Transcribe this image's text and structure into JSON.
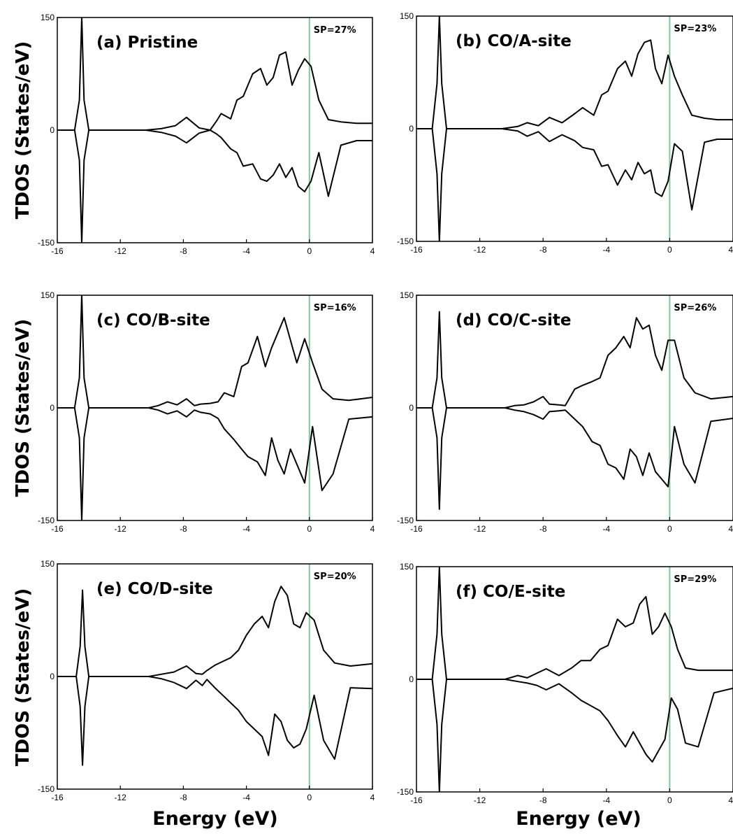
{
  "figure": {
    "ylabel": "TDOS (States/eV)",
    "xlabel": "Energy (eV)"
  },
  "colors": {
    "curve": "#000000",
    "fermi_line": "#7fc89a",
    "frame": "#000000"
  },
  "chart_data": [
    {
      "type": "line",
      "title": "(a) Pristine",
      "annotation": "SP=27%",
      "xlim": [
        -16,
        4
      ],
      "ylim": [
        -150,
        150
      ],
      "xticks": [
        -16,
        -12,
        -8,
        -4,
        0,
        4
      ],
      "yticks": [
        -150,
        0,
        150
      ],
      "fermi_level": 0,
      "series": [
        {
          "x": [
            -16,
            -14.9,
            -14.6,
            -14.45,
            -14.3,
            -14.0,
            -10.4,
            -9.4,
            -8.5,
            -7.8,
            -7.0,
            -6.3,
            -5.9,
            -5.6,
            -5.0,
            -4.6,
            -4.2,
            -3.6,
            -3.1,
            -2.7,
            -2.3,
            -1.9,
            -1.5,
            -1.1,
            -0.7,
            -0.3,
            0.1,
            0.6,
            1.2,
            2.0,
            3.0,
            4.0
          ],
          "values": [
            0,
            0,
            40,
            150,
            40,
            0,
            0,
            2,
            6,
            17,
            3,
            0,
            12,
            22,
            15,
            40,
            45,
            75,
            82,
            60,
            70,
            100,
            104,
            60,
            80,
            95,
            85,
            40,
            14,
            11,
            9,
            9
          ]
        },
        {
          "x": [
            -16,
            -14.9,
            -14.6,
            -14.45,
            -14.3,
            -14.0,
            -10.4,
            -9.4,
            -8.5,
            -7.8,
            -7.0,
            -6.3,
            -5.9,
            -5.6,
            -5.0,
            -4.6,
            -4.2,
            -3.6,
            -3.1,
            -2.7,
            -2.3,
            -1.9,
            -1.5,
            -1.1,
            -0.7,
            -0.3,
            0.1,
            0.6,
            1.2,
            2.0,
            3.0,
            4.0
          ],
          "values": [
            0,
            0,
            -40,
            -150,
            -40,
            0,
            0,
            -3,
            -8,
            -17,
            -4,
            0,
            -5,
            -10,
            -25,
            -30,
            -48,
            -45,
            -65,
            -68,
            -60,
            -45,
            -63,
            -50,
            -75,
            -82,
            -68,
            -30,
            -88,
            -20,
            -14,
            -14
          ]
        }
      ]
    },
    {
      "type": "line",
      "title": "(b) CO/A-site",
      "annotation": "SP=23%",
      "xlim": [
        -16,
        4
      ],
      "ylim": [
        -150,
        150
      ],
      "xticks": [
        -16,
        -12,
        -8,
        -4,
        0,
        4
      ],
      "yticks": [
        -150,
        0,
        150
      ],
      "fermi_level": 0,
      "series": [
        {
          "x": [
            -16,
            -15.0,
            -14.7,
            -14.55,
            -14.4,
            -14.1,
            -10.6,
            -9.6,
            -9.0,
            -8.3,
            -7.6,
            -6.8,
            -6.0,
            -5.5,
            -4.8,
            -4.3,
            -3.9,
            -3.3,
            -2.8,
            -2.4,
            -2.0,
            -1.6,
            -1.2,
            -0.9,
            -0.5,
            -0.1,
            0.3,
            0.8,
            1.4,
            2.2,
            3.0,
            4.0
          ],
          "values": [
            0,
            0,
            60,
            150,
            60,
            0,
            0,
            3,
            8,
            4,
            15,
            8,
            20,
            28,
            18,
            45,
            50,
            80,
            90,
            70,
            100,
            115,
            118,
            80,
            60,
            98,
            70,
            45,
            18,
            14,
            12,
            12
          ]
        },
        {
          "x": [
            -16,
            -15.0,
            -14.7,
            -14.55,
            -14.4,
            -14.1,
            -10.6,
            -9.6,
            -9.0,
            -8.3,
            -7.6,
            -6.8,
            -6.0,
            -5.5,
            -4.8,
            -4.3,
            -3.9,
            -3.3,
            -2.8,
            -2.4,
            -2.0,
            -1.6,
            -1.2,
            -0.9,
            -0.5,
            -0.1,
            0.3,
            0.8,
            1.4,
            2.2,
            3.0,
            4.0
          ],
          "values": [
            0,
            0,
            -60,
            -150,
            -60,
            0,
            0,
            -3,
            -10,
            -4,
            -17,
            -8,
            -16,
            -25,
            -28,
            -50,
            -48,
            -75,
            -55,
            -68,
            -45,
            -60,
            -55,
            -85,
            -90,
            -70,
            -20,
            -30,
            -108,
            -18,
            -14,
            -14
          ]
        }
      ]
    },
    {
      "type": "line",
      "title": "(c) CO/B-site",
      "annotation": "SP=16%",
      "xlim": [
        -16,
        4
      ],
      "ylim": [
        -150,
        150
      ],
      "xticks": [
        -16,
        -12,
        -8,
        -4,
        0,
        4
      ],
      "yticks": [
        -150,
        0,
        150
      ],
      "fermi_level": 0,
      "series": [
        {
          "x": [
            -16,
            -14.9,
            -14.6,
            -14.45,
            -14.3,
            -14.0,
            -10.2,
            -9.6,
            -9.0,
            -8.4,
            -7.8,
            -7.3,
            -6.9,
            -6.3,
            -5.8,
            -5.4,
            -4.8,
            -4.3,
            -3.9,
            -3.3,
            -2.8,
            -2.4,
            -2.0,
            -1.6,
            -1.2,
            -0.8,
            -0.3,
            0.2,
            0.8,
            1.5,
            2.5,
            4.0
          ],
          "values": [
            0,
            0,
            40,
            150,
            40,
            0,
            0,
            3,
            8,
            4,
            12,
            3,
            5,
            6,
            8,
            20,
            15,
            55,
            60,
            95,
            55,
            80,
            100,
            120,
            90,
            60,
            92,
            60,
            25,
            12,
            10,
            14
          ]
        },
        {
          "x": [
            -16,
            -14.9,
            -14.6,
            -14.45,
            -14.3,
            -14.0,
            -10.2,
            -9.6,
            -9.0,
            -8.4,
            -7.8,
            -7.3,
            -6.9,
            -6.3,
            -5.8,
            -5.4,
            -4.8,
            -4.3,
            -3.9,
            -3.3,
            -2.8,
            -2.4,
            -2.0,
            -1.6,
            -1.2,
            -0.8,
            -0.3,
            0.2,
            0.8,
            1.5,
            2.5,
            4.0
          ],
          "values": [
            0,
            0,
            -40,
            -150,
            -40,
            0,
            0,
            -3,
            -8,
            -4,
            -12,
            -3,
            -6,
            -8,
            -14,
            -28,
            -42,
            -55,
            -65,
            -72,
            -90,
            -40,
            -70,
            -88,
            -55,
            -75,
            -100,
            -25,
            -110,
            -88,
            -15,
            -12
          ]
        }
      ]
    },
    {
      "type": "line",
      "title": "(d) CO/C-site",
      "annotation": "SP=26%",
      "xlim": [
        -16,
        4
      ],
      "ylim": [
        -150,
        150
      ],
      "xticks": [
        -16,
        -12,
        -8,
        -4,
        0,
        4
      ],
      "yticks": [
        -150,
        0,
        150
      ],
      "fermi_level": 0,
      "series": [
        {
          "x": [
            -16,
            -15.0,
            -14.7,
            -14.55,
            -14.4,
            -14.1,
            -10.4,
            -9.8,
            -9.2,
            -8.6,
            -8.0,
            -7.6,
            -7.0,
            -6.6,
            -6.0,
            -5.5,
            -4.9,
            -4.4,
            -3.9,
            -3.4,
            -2.9,
            -2.5,
            -2.1,
            -1.7,
            -1.3,
            -0.9,
            -0.5,
            -0.1,
            0.3,
            0.9,
            1.6,
            2.6,
            4.0
          ],
          "values": [
            0,
            0,
            40,
            128,
            40,
            0,
            0,
            3,
            4,
            8,
            15,
            5,
            4,
            3,
            25,
            30,
            35,
            40,
            70,
            80,
            95,
            80,
            120,
            105,
            110,
            70,
            50,
            90,
            90,
            40,
            20,
            12,
            15
          ]
        },
        {
          "x": [
            -16,
            -15.0,
            -14.7,
            -14.55,
            -14.4,
            -14.1,
            -10.4,
            -9.8,
            -9.2,
            -8.6,
            -8.0,
            -7.6,
            -7.0,
            -6.6,
            -6.0,
            -5.5,
            -4.9,
            -4.4,
            -3.9,
            -3.4,
            -2.9,
            -2.5,
            -2.1,
            -1.7,
            -1.3,
            -0.9,
            -0.5,
            -0.1,
            0.3,
            0.9,
            1.6,
            2.6,
            4.0
          ],
          "values": [
            0,
            0,
            -40,
            -135,
            -40,
            0,
            0,
            -3,
            -5,
            -9,
            -15,
            -5,
            -4,
            -3,
            -15,
            -25,
            -45,
            -50,
            -75,
            -80,
            -95,
            -55,
            -65,
            -90,
            -60,
            -85,
            -95,
            -105,
            -25,
            -75,
            -100,
            -18,
            -14
          ]
        }
      ]
    },
    {
      "type": "line",
      "title": "(e) CO/D-site",
      "annotation": "SP=20%",
      "xlim": [
        -16,
        4
      ],
      "ylim": [
        -150,
        150
      ],
      "xticks": [
        -16,
        -12,
        -8,
        -4,
        0,
        4
      ],
      "yticks": [
        -150,
        0,
        150
      ],
      "fermi_level": 0,
      "series": [
        {
          "x": [
            -16,
            -14.8,
            -14.55,
            -14.4,
            -14.25,
            -14.0,
            -10.2,
            -9.4,
            -8.6,
            -7.8,
            -7.2,
            -6.8,
            -6.5,
            -6.0,
            -5.5,
            -5.0,
            -4.5,
            -4.0,
            -3.5,
            -3.0,
            -2.6,
            -2.2,
            -1.8,
            -1.4,
            -1.0,
            -0.6,
            -0.2,
            0.3,
            0.9,
            1.6,
            2.6,
            4.0
          ],
          "values": [
            0,
            0,
            40,
            115,
            40,
            0,
            0,
            3,
            6,
            14,
            4,
            3,
            8,
            15,
            20,
            25,
            35,
            55,
            70,
            80,
            65,
            100,
            120,
            108,
            70,
            65,
            85,
            75,
            35,
            18,
            14,
            17
          ]
        },
        {
          "x": [
            -16,
            -14.8,
            -14.55,
            -14.4,
            -14.25,
            -14.0,
            -10.2,
            -9.4,
            -8.6,
            -7.8,
            -7.2,
            -6.8,
            -6.5,
            -6.0,
            -5.5,
            -5.0,
            -4.5,
            -4.0,
            -3.5,
            -3.0,
            -2.6,
            -2.2,
            -1.8,
            -1.4,
            -1.0,
            -0.6,
            -0.2,
            0.3,
            0.9,
            1.6,
            2.6,
            4.0
          ],
          "values": [
            0,
            0,
            -40,
            -118,
            -40,
            0,
            0,
            -3,
            -8,
            -16,
            -5,
            -12,
            -4,
            -15,
            -25,
            -35,
            -45,
            -60,
            -70,
            -80,
            -105,
            -50,
            -60,
            -85,
            -95,
            -90,
            -70,
            -25,
            -85,
            -110,
            -15,
            -16
          ]
        }
      ]
    },
    {
      "type": "line",
      "title": "(f) CO/E-site",
      "annotation": "SP=29%",
      "xlim": [
        -16,
        4
      ],
      "ylim": [
        -150,
        150
      ],
      "xticks": [
        -16,
        -12,
        -8,
        -4,
        0,
        4
      ],
      "yticks": [
        -150,
        0,
        150
      ],
      "fermi_level": 0,
      "series": [
        {
          "x": [
            -16,
            -15.0,
            -14.7,
            -14.55,
            -14.4,
            -14.1,
            -10.4,
            -9.6,
            -9.0,
            -8.4,
            -7.8,
            -7.0,
            -6.2,
            -5.6,
            -5.0,
            -4.4,
            -3.9,
            -3.3,
            -2.8,
            -2.3,
            -1.9,
            -1.5,
            -1.1,
            -0.7,
            -0.3,
            0.1,
            0.5,
            1.0,
            1.8,
            2.8,
            4.0
          ],
          "values": [
            0,
            0,
            60,
            150,
            60,
            0,
            0,
            5,
            2,
            8,
            14,
            5,
            15,
            25,
            25,
            40,
            45,
            80,
            70,
            75,
            100,
            110,
            60,
            70,
            88,
            70,
            40,
            15,
            12,
            12,
            12
          ]
        },
        {
          "x": [
            -16,
            -15.0,
            -14.7,
            -14.55,
            -14.4,
            -14.1,
            -10.4,
            -9.6,
            -9.0,
            -8.4,
            -7.8,
            -7.0,
            -6.2,
            -5.6,
            -5.0,
            -4.4,
            -3.9,
            -3.3,
            -2.8,
            -2.3,
            -1.9,
            -1.5,
            -1.1,
            -0.7,
            -0.3,
            0.1,
            0.5,
            1.0,
            1.8,
            2.8,
            4.0
          ],
          "values": [
            0,
            0,
            -60,
            -150,
            -60,
            0,
            0,
            -3,
            -5,
            -8,
            -14,
            -6,
            -18,
            -28,
            -35,
            -42,
            -55,
            -75,
            -90,
            -70,
            -85,
            -100,
            -110,
            -95,
            -80,
            -25,
            -40,
            -85,
            -90,
            -18,
            -12
          ]
        }
      ]
    }
  ]
}
